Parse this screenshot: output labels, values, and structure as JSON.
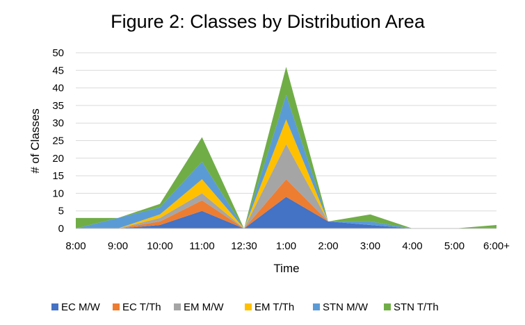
{
  "chart_data": {
    "type": "area",
    "stacked": true,
    "title": "Figure 2: Classes by Distribution Area",
    "xlabel": "Time",
    "ylabel": "# of Classes",
    "ylim": [
      0,
      50
    ],
    "yticks": [
      0,
      5,
      10,
      15,
      20,
      25,
      30,
      35,
      40,
      45,
      50
    ],
    "grid": true,
    "legend_position": "bottom",
    "categories": [
      "8:00",
      "9:00",
      "10:00",
      "11:00",
      "12:30",
      "1:00",
      "2:00",
      "3:00",
      "4:00",
      "5:00",
      "6:00+"
    ],
    "series": [
      {
        "name": "EC M/W",
        "color": "#4472C4",
        "values": [
          0,
          0,
          1,
          5,
          0,
          9,
          2,
          1,
          0,
          0,
          0
        ]
      },
      {
        "name": "EC T/Th",
        "color": "#ED7D31",
        "values": [
          0,
          0,
          1,
          3,
          0,
          5,
          0,
          0,
          0,
          0,
          0
        ]
      },
      {
        "name": "EM M/W",
        "color": "#A5A5A5",
        "values": [
          0,
          0,
          1,
          2,
          0,
          10,
          0,
          0,
          0,
          0,
          0
        ]
      },
      {
        "name": "EM T/Th",
        "color": "#FFC000",
        "values": [
          0,
          0,
          1,
          4,
          0,
          7,
          0,
          0,
          0,
          0,
          0
        ]
      },
      {
        "name": "STN M/W",
        "color": "#5B9BD5",
        "values": [
          0,
          3,
          2,
          5,
          0,
          7,
          0,
          1,
          0,
          0,
          0
        ]
      },
      {
        "name": "STN T/Th",
        "color": "#70AD47",
        "values": [
          3,
          0,
          1,
          7,
          0,
          8,
          0,
          2,
          0,
          0,
          1
        ]
      }
    ]
  }
}
